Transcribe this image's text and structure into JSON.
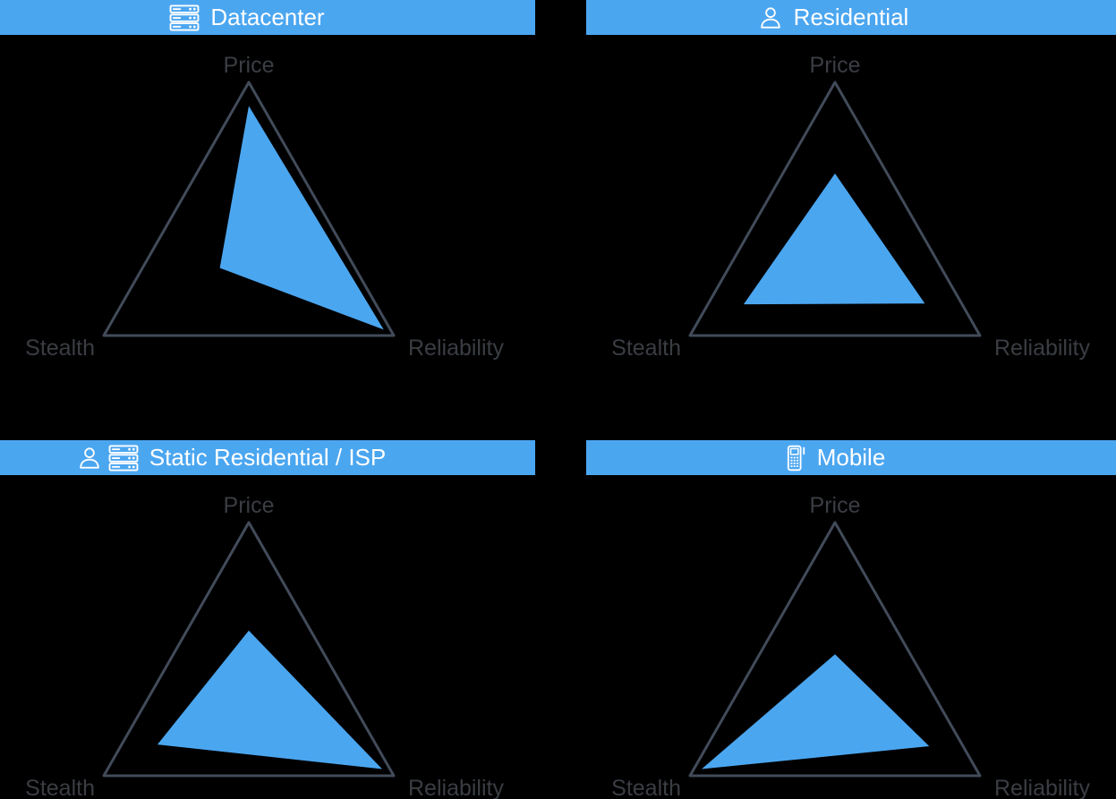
{
  "page": {
    "background_color": "#000000",
    "accent_color": "#4BA6F0",
    "triangle_outline_color": "#424B5A",
    "axis_label_color": "#3A3D43",
    "header_text_color": "#FFFFFF"
  },
  "chart_data": [
    {
      "type": "radar",
      "title": "Datacenter",
      "icons": [
        "server-rack-icon"
      ],
      "axes": [
        "Price",
        "Stealth",
        "Reliability"
      ],
      "values": {
        "price": 0.86,
        "stealth": 0.2,
        "reliability": 0.93
      },
      "scale": {
        "min": 0,
        "max": 1
      },
      "legend": "none",
      "grid": "outer-triangle-only"
    },
    {
      "type": "radar",
      "title": "Residential",
      "icons": [
        "person-icon"
      ],
      "axes": [
        "Price",
        "Stealth",
        "Reliability"
      ],
      "values": {
        "price": 0.46,
        "stealth": 0.63,
        "reliability": 0.62
      },
      "scale": {
        "min": 0,
        "max": 1
      },
      "legend": "none",
      "grid": "outer-triangle-only"
    },
    {
      "type": "radar",
      "title": "Static Residential / ISP",
      "icons": [
        "person-icon",
        "server-rack-icon"
      ],
      "axes": [
        "Price",
        "Stealth",
        "Reliability"
      ],
      "values": {
        "price": 0.36,
        "stealth": 0.63,
        "reliability": 0.92
      },
      "scale": {
        "min": 0,
        "max": 1
      },
      "legend": "none",
      "grid": "outer-triangle-only"
    },
    {
      "type": "radar",
      "title": "Mobile",
      "icons": [
        "mobile-phone-icon"
      ],
      "axes": [
        "Price",
        "Stealth",
        "Reliability"
      ],
      "values": {
        "price": 0.22,
        "stealth": 0.92,
        "reliability": 0.65
      },
      "scale": {
        "min": 0,
        "max": 1
      },
      "legend": "none",
      "grid": "outer-triangle-only"
    }
  ]
}
